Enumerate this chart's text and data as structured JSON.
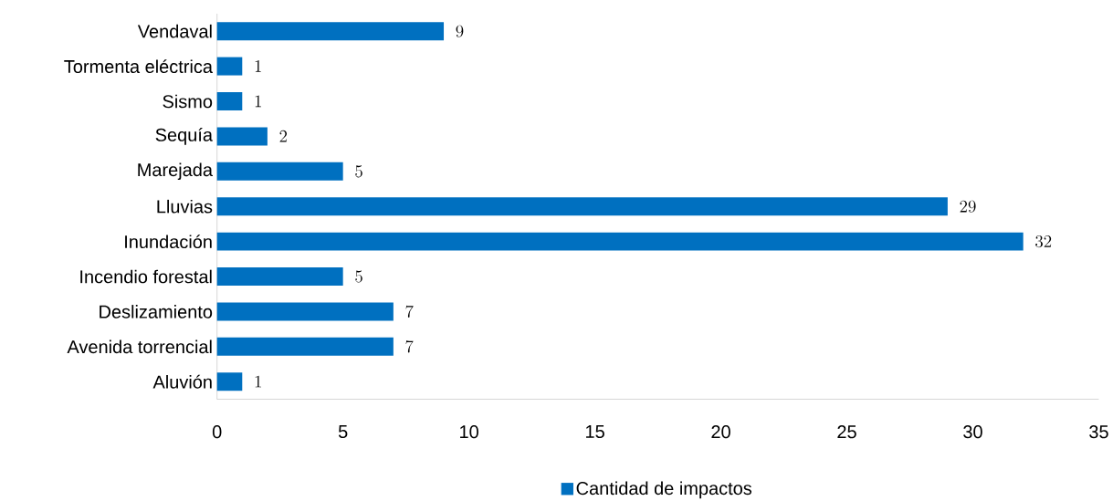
{
  "chart_data": {
    "type": "bar",
    "orientation": "horizontal",
    "categories": [
      "Vendaval",
      "Tormenta eléctrica",
      "Sismo",
      "Sequía",
      "Marejada",
      "Lluvias",
      "Inundación",
      "Incendio forestal",
      "Deslizamiento",
      "Avenida torrencial",
      "Aluvión"
    ],
    "series": [
      {
        "name": "Cantidad de impactos",
        "color": "#0070c0",
        "values": [
          9,
          1,
          1,
          2,
          5,
          29,
          32,
          5,
          7,
          7,
          1
        ]
      }
    ],
    "xlim": [
      0,
      35
    ],
    "xticks": [
      0,
      5,
      10,
      15,
      20,
      25,
      30,
      35
    ],
    "data_labels": true,
    "legend": "bottom",
    "grid": false
  }
}
